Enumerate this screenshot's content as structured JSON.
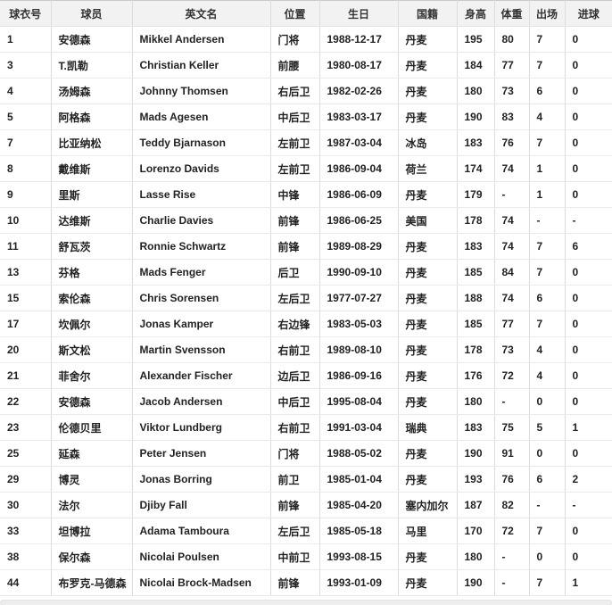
{
  "table": {
    "columns": [
      {
        "key": "jersey_number",
        "label": "球衣号"
      },
      {
        "key": "name_cn",
        "label": "球员"
      },
      {
        "key": "name_en",
        "label": "英文名"
      },
      {
        "key": "position",
        "label": "位置"
      },
      {
        "key": "birthday",
        "label": "生日"
      },
      {
        "key": "nationality",
        "label": "国籍"
      },
      {
        "key": "height",
        "label": "身高"
      },
      {
        "key": "weight",
        "label": "体重"
      },
      {
        "key": "appearances",
        "label": "出场"
      },
      {
        "key": "goals",
        "label": "进球"
      }
    ],
    "rows": [
      [
        "1",
        "安德森",
        "Mikkel Andersen",
        "门将",
        "1988-12-17",
        "丹麦",
        "195",
        "80",
        "7",
        "0"
      ],
      [
        "3",
        "T.凯勒",
        "Christian Keller",
        "前腰",
        "1980-08-17",
        "丹麦",
        "184",
        "77",
        "7",
        "0"
      ],
      [
        "4",
        "汤姆森",
        "Johnny Thomsen",
        "右后卫",
        "1982-02-26",
        "丹麦",
        "180",
        "73",
        "6",
        "0"
      ],
      [
        "5",
        "阿格森",
        "Mads Agesen",
        "中后卫",
        "1983-03-17",
        "丹麦",
        "190",
        "83",
        "4",
        "0"
      ],
      [
        "7",
        "比亚纳松",
        "Teddy Bjarnason",
        "左前卫",
        "1987-03-04",
        "冰岛",
        "183",
        "76",
        "7",
        "0"
      ],
      [
        "8",
        "戴维斯",
        "Lorenzo Davids",
        "左前卫",
        "1986-09-04",
        "荷兰",
        "174",
        "74",
        "1",
        "0"
      ],
      [
        "9",
        "里斯",
        "Lasse Rise",
        "中锋",
        "1986-06-09",
        "丹麦",
        "179",
        "-",
        "1",
        "0"
      ],
      [
        "10",
        "达维斯",
        "Charlie Davies",
        "前锋",
        "1986-06-25",
        "美国",
        "178",
        "74",
        "-",
        "-"
      ],
      [
        "11",
        "舒瓦茨",
        "Ronnie Schwartz",
        "前锋",
        "1989-08-29",
        "丹麦",
        "183",
        "74",
        "7",
        "6"
      ],
      [
        "13",
        "芬格",
        "Mads Fenger",
        "后卫",
        "1990-09-10",
        "丹麦",
        "185",
        "84",
        "7",
        "0"
      ],
      [
        "15",
        "索伦森",
        "Chris Sorensen",
        "左后卫",
        "1977-07-27",
        "丹麦",
        "188",
        "74",
        "6",
        "0"
      ],
      [
        "17",
        "坎佩尔",
        "Jonas Kamper",
        "右边锋",
        "1983-05-03",
        "丹麦",
        "185",
        "77",
        "7",
        "0"
      ],
      [
        "20",
        "斯文松",
        "Martin Svensson",
        "右前卫",
        "1989-08-10",
        "丹麦",
        "178",
        "73",
        "4",
        "0"
      ],
      [
        "21",
        "菲舍尔",
        "Alexander Fischer",
        "边后卫",
        "1986-09-16",
        "丹麦",
        "176",
        "72",
        "4",
        "0"
      ],
      [
        "22",
        "安德森",
        "Jacob Andersen",
        "中后卫",
        "1995-08-04",
        "丹麦",
        "180",
        "-",
        "0",
        "0"
      ],
      [
        "23",
        "伦德贝里",
        "Viktor Lundberg",
        "右前卫",
        "1991-03-04",
        "瑞典",
        "183",
        "75",
        "5",
        "1"
      ],
      [
        "25",
        "延森",
        "Peter Jensen",
        "门将",
        "1988-05-02",
        "丹麦",
        "190",
        "91",
        "0",
        "0"
      ],
      [
        "29",
        "博灵",
        "Jonas Borring",
        "前卫",
        "1985-01-04",
        "丹麦",
        "193",
        "76",
        "6",
        "2"
      ],
      [
        "30",
        "法尔",
        "Djiby Fall",
        "前锋",
        "1985-04-20",
        "塞内加尔",
        "187",
        "82",
        "-",
        "-"
      ],
      [
        "33",
        "坦博拉",
        "Adama Tamboura",
        "左后卫",
        "1985-05-18",
        "马里",
        "170",
        "72",
        "7",
        "0"
      ],
      [
        "38",
        "保尔森",
        "Nicolai Poulsen",
        "中前卫",
        "1993-08-15",
        "丹麦",
        "180",
        "-",
        "0",
        "0"
      ],
      [
        "44",
        "布罗克-马德森",
        "Nicolai Brock-Madsen",
        "前锋",
        "1993-01-09",
        "丹麦",
        "190",
        "-",
        "7",
        "1"
      ]
    ]
  }
}
